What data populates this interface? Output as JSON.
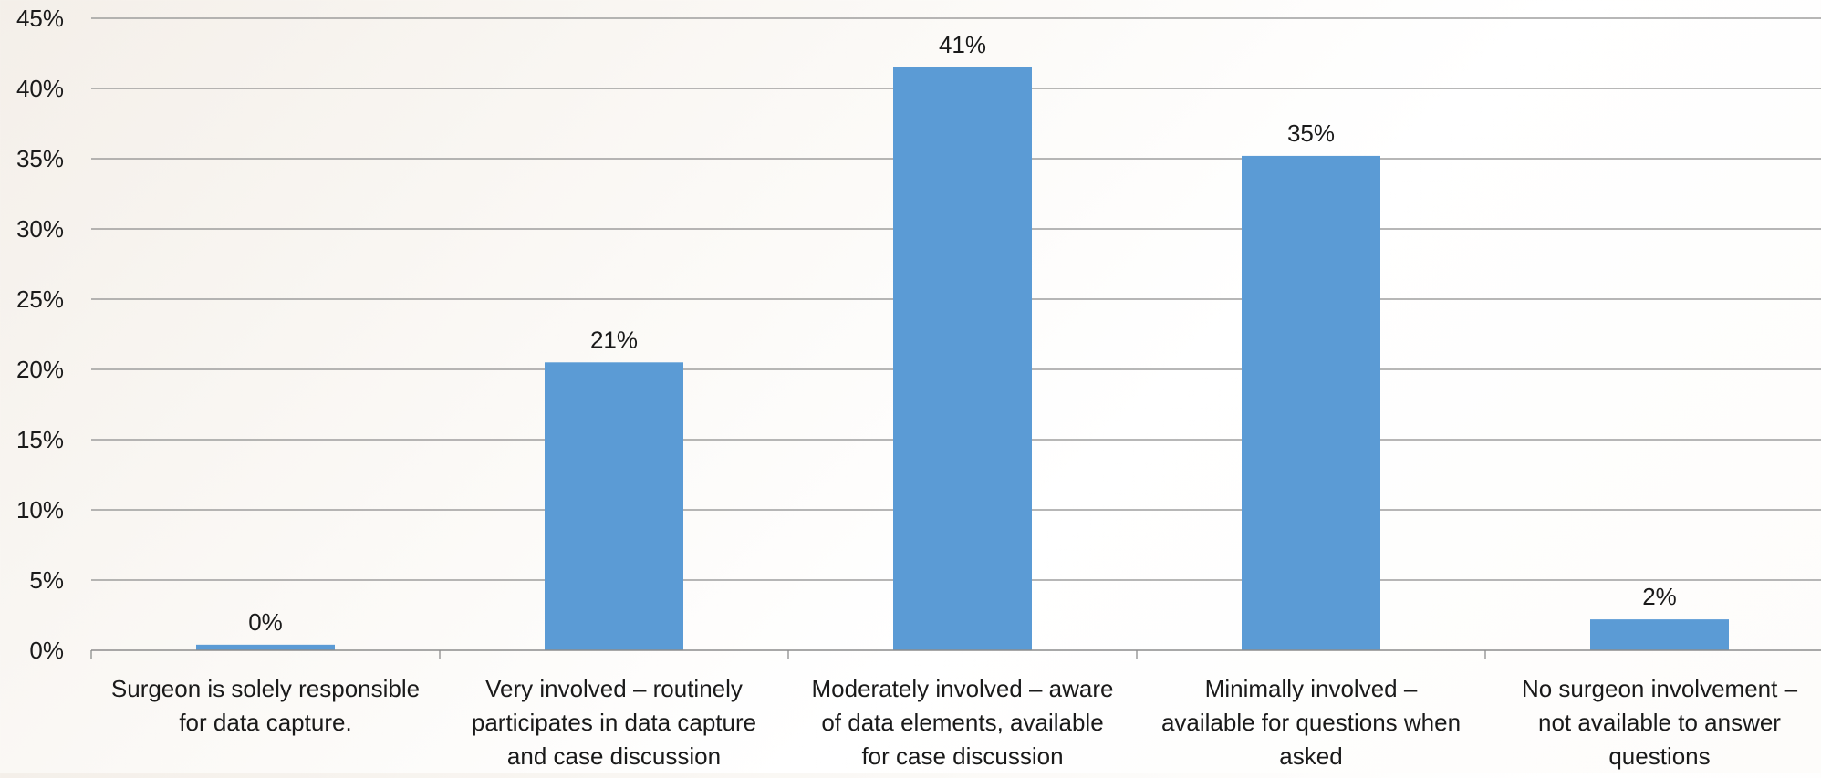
{
  "chart_data": {
    "type": "bar",
    "title": "",
    "xlabel": "",
    "ylabel": "",
    "ylim": [
      0,
      45
    ],
    "yticks": [
      0,
      5,
      10,
      15,
      20,
      25,
      30,
      35,
      40,
      45
    ],
    "ytick_labels": [
      "0%",
      "5%",
      "10%",
      "15%",
      "20%",
      "25%",
      "30%",
      "35%",
      "40%",
      "45%"
    ],
    "grid": true,
    "legend": "none",
    "bar_color": "#5b9bd5",
    "categories": [
      [
        "Surgeon is solely responsible",
        "for data capture."
      ],
      [
        "Very involved – routinely",
        "participates in data capture",
        "and case discussion"
      ],
      [
        "Moderately involved – aware",
        "of data elements, available",
        "for case discussion"
      ],
      [
        "Minimally involved –",
        "available for questions when",
        "asked"
      ],
      [
        "No surgeon involvement –",
        "not available to answer",
        "questions"
      ]
    ],
    "values": [
      0.4,
      20.5,
      41.5,
      35.2,
      2.2
    ],
    "data_labels": [
      "0%",
      "21%",
      "41%",
      "35%",
      "2%"
    ]
  }
}
